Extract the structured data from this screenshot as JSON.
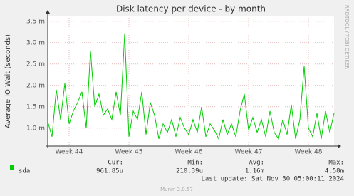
{
  "chart_data": {
    "type": "line",
    "title": "Disk latency per device - by month",
    "y_label": "Average IO Wait (seconds)",
    "watermark": "RRDTOOL / TOBI OETIKER",
    "footer": "Munin 2.0.57",
    "last_update": "Last update: Sat Nov 30 05:00:11 2024",
    "stat_headers": [
      "Cur:",
      "Min:",
      "Avg:",
      "Max:"
    ],
    "x": [
      0,
      0.5,
      1,
      1.5,
      2,
      2.5,
      3,
      3.5,
      4,
      4.5,
      5,
      5.5,
      6,
      6.5,
      7,
      7.5,
      8,
      8.5,
      9,
      9.5,
      10,
      10.5,
      11,
      11.5,
      12,
      12.5,
      13,
      13.5,
      14,
      14.5,
      15,
      15.5,
      16,
      16.5,
      17,
      17.5,
      18,
      18.5,
      19,
      19.5,
      20,
      20.5,
      21,
      21.5,
      22,
      22.5,
      23,
      23.5,
      24,
      24.5,
      25,
      25.5,
      26,
      26.5,
      27,
      27.5,
      28,
      28.5,
      29,
      29.5,
      30,
      30.5,
      31,
      31.5,
      32,
      32.5,
      33,
      33.5
    ],
    "xlim": [
      0,
      33.5
    ],
    "xticks": [
      {
        "value": 2.5,
        "label": "Week 44"
      },
      {
        "value": 9.5,
        "label": "Week 45"
      },
      {
        "value": 16.5,
        "label": "Week 46"
      },
      {
        "value": 23.5,
        "label": "Week 47"
      },
      {
        "value": 30.5,
        "label": "Week 48"
      }
    ],
    "ylim": [
      0.00058,
      0.00363
    ],
    "yticks": [
      {
        "value": 0.001,
        "label": "1.0 m"
      },
      {
        "value": 0.0015,
        "label": "1.5 m"
      },
      {
        "value": 0.002,
        "label": "2.0 m"
      },
      {
        "value": 0.0025,
        "label": "2.5 m"
      },
      {
        "value": 0.003,
        "label": "3.0 m"
      },
      {
        "value": 0.0035,
        "label": "3.5 m"
      }
    ],
    "grid": true,
    "series": [
      {
        "name": "sda",
        "color": "#00cc00",
        "stats": [
          "961.85u",
          "210.39u",
          "1.16m",
          "4.58m"
        ],
        "values": [
          0.00115,
          0.0008,
          0.0019,
          0.0012,
          0.00205,
          0.0011,
          0.0014,
          0.0016,
          0.00185,
          0.001,
          0.0028,
          0.0015,
          0.0018,
          0.0013,
          0.00145,
          0.0012,
          0.00185,
          0.0013,
          0.0032,
          0.0008,
          0.0014,
          0.0012,
          0.00185,
          0.00085,
          0.0016,
          0.0013,
          0.00075,
          0.0011,
          0.0009,
          0.0012,
          0.0008,
          0.00125,
          0.001,
          0.00085,
          0.0012,
          0.0009,
          0.0015,
          0.0008,
          0.0011,
          0.00095,
          0.00075,
          0.0012,
          0.00085,
          0.0011,
          0.0008,
          0.0014,
          0.0018,
          0.00095,
          0.00125,
          0.0009,
          0.0012,
          0.0008,
          0.0014,
          0.0009,
          0.00075,
          0.0012,
          0.00085,
          0.00155,
          0.00075,
          0.0012,
          0.00245,
          0.001,
          0.0008,
          0.00135,
          0.00075,
          0.0014,
          0.0009,
          0.00135
        ]
      }
    ]
  }
}
